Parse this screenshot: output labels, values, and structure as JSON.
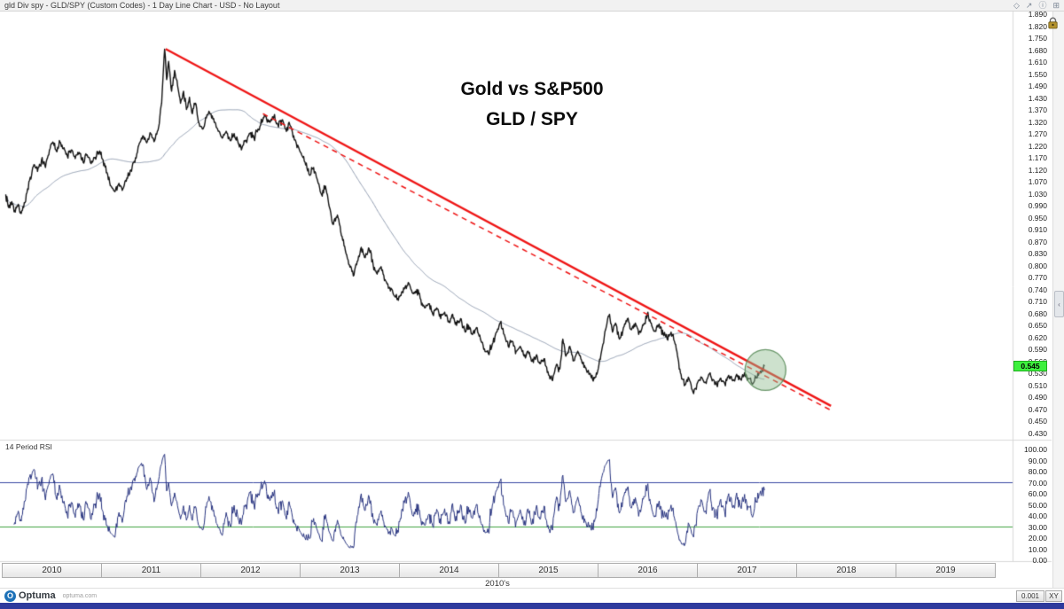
{
  "titlebar": {
    "title": "gld Div spy - GLD/SPY (Custom Codes) - 1 Day Line Chart - USD - No Layout",
    "icons": [
      {
        "name": "diamond-icon",
        "glyph": "◇"
      },
      {
        "name": "pop-out-icon",
        "glyph": "↗"
      },
      {
        "name": "info-icon",
        "glyph": "ⓘ"
      },
      {
        "name": "layout-grid-icon",
        "glyph": "⊞"
      }
    ]
  },
  "main_chart": {
    "title_line1": "Gold vs S&P500",
    "title_line2": "GLD / SPY",
    "last_price": "0.545"
  },
  "rsi_panel": {
    "label": "14 Period RSI"
  },
  "axes": {
    "price_ticks": [
      "1.890",
      "1.820",
      "1.750",
      "1.680",
      "1.610",
      "1.550",
      "1.490",
      "1.430",
      "1.370",
      "1.320",
      "1.270",
      "1.220",
      "1.170",
      "1.120",
      "1.070",
      "1.030",
      "0.990",
      "0.950",
      "0.910",
      "0.870",
      "0.830",
      "0.800",
      "0.770",
      "0.740",
      "0.710",
      "0.680",
      "0.650",
      "0.620",
      "0.590",
      "0.560",
      "0.530",
      "0.510",
      "0.490",
      "0.470",
      "0.450",
      "0.430"
    ],
    "rsi_ticks": [
      "100.00",
      "90.00",
      "80.00",
      "70.00",
      "60.00",
      "50.00",
      "40.00",
      "30.00",
      "20.00",
      "10.00",
      "0.00"
    ],
    "years": [
      "2010",
      "2011",
      "2012",
      "2013",
      "2014",
      "2015",
      "2016",
      "2017",
      "2018",
      "2019"
    ],
    "decade_label": "2010's"
  },
  "right_strip": {
    "handle_glyph": "‹"
  },
  "footer": {
    "brand": "Optuma",
    "url": "optuma.com",
    "scale_button": "0.001",
    "xy_button": "XY"
  },
  "colors": {
    "price_line": "#141414",
    "ma_line": "#8e9aae",
    "trendline": "#ee1515",
    "rsi_line": "#27337f",
    "overbought_line": "#3a49a3",
    "oversold_line": "#3fa23f",
    "badge_bg": "#3df03d",
    "circle_fill": "rgba(145,188,145,0.45)",
    "circle_stroke": "rgba(90,140,90,0.9)",
    "bottom_strip": "#2e3a9d"
  },
  "chart_data": {
    "type": "line",
    "title": "Gold vs S&P500 — GLD / SPY ratio, 1 Day Line Chart",
    "x_axis": {
      "unit": "year",
      "range": [
        2010.0,
        2020.2
      ],
      "ticks": [
        2010,
        2011,
        2012,
        2013,
        2014,
        2015,
        2016,
        2017,
        2018,
        2019
      ],
      "decade": "2010's"
    },
    "panels": [
      {
        "name": "price",
        "scale": "log",
        "value_range": [
          0.43,
          1.89
        ],
        "last_value": 0.545,
        "series": [
          {
            "name": "GLD/SPY",
            "points": [
              [
                2010.04,
                1.0
              ],
              [
                2010.07,
                0.955
              ],
              [
                2010.1,
                0.975
              ],
              [
                2010.13,
                0.945
              ],
              [
                2010.16,
                0.96
              ],
              [
                2010.19,
                0.94
              ],
              [
                2010.22,
                0.955
              ],
              [
                2010.26,
                1.02
              ],
              [
                2010.3,
                1.07
              ],
              [
                2010.33,
                1.11
              ],
              [
                2010.36,
                1.085
              ],
              [
                2010.4,
                1.13
              ],
              [
                2010.44,
                1.1
              ],
              [
                2010.48,
                1.17
              ],
              [
                2010.52,
                1.2
              ],
              [
                2010.55,
                1.165
              ],
              [
                2010.58,
                1.21
              ],
              [
                2010.62,
                1.175
              ],
              [
                2010.66,
                1.145
              ],
              [
                2010.7,
                1.17
              ],
              [
                2010.74,
                1.135
              ],
              [
                2010.78,
                1.16
              ],
              [
                2010.82,
                1.12
              ],
              [
                2010.86,
                1.15
              ],
              [
                2010.9,
                1.115
              ],
              [
                2010.94,
                1.14
              ],
              [
                2010.98,
                1.16
              ],
              [
                2011.02,
                1.13
              ],
              [
                2011.06,
                1.08
              ],
              [
                2011.1,
                1.03
              ],
              [
                2011.14,
                1.01
              ],
              [
                2011.18,
                1.04
              ],
              [
                2011.22,
                1.02
              ],
              [
                2011.26,
                1.06
              ],
              [
                2011.3,
                1.09
              ],
              [
                2011.34,
                1.12
              ],
              [
                2011.38,
                1.19
              ],
              [
                2011.42,
                1.23
              ],
              [
                2011.46,
                1.2
              ],
              [
                2011.5,
                1.24
              ],
              [
                2011.54,
                1.21
              ],
              [
                2011.58,
                1.27
              ],
              [
                2011.61,
                1.38
              ],
              [
                2011.64,
                1.67
              ],
              [
                2011.66,
                1.5
              ],
              [
                2011.68,
                1.6
              ],
              [
                2011.71,
                1.44
              ],
              [
                2011.74,
                1.55
              ],
              [
                2011.77,
                1.47
              ],
              [
                2011.8,
                1.38
              ],
              [
                2011.83,
                1.44
              ],
              [
                2011.86,
                1.35
              ],
              [
                2011.89,
                1.41
              ],
              [
                2011.92,
                1.33
              ],
              [
                2011.95,
                1.38
              ],
              [
                2011.98,
                1.29
              ],
              [
                2012.02,
                1.26
              ],
              [
                2012.06,
                1.31
              ],
              [
                2012.1,
                1.33
              ],
              [
                2012.14,
                1.29
              ],
              [
                2012.18,
                1.25
              ],
              [
                2012.22,
                1.22
              ],
              [
                2012.26,
                1.25
              ],
              [
                2012.3,
                1.21
              ],
              [
                2012.34,
                1.24
              ],
              [
                2012.38,
                1.2
              ],
              [
                2012.42,
                1.18
              ],
              [
                2012.46,
                1.21
              ],
              [
                2012.5,
                1.24
              ],
              [
                2012.54,
                1.22
              ],
              [
                2012.58,
                1.26
              ],
              [
                2012.62,
                1.29
              ],
              [
                2012.66,
                1.32
              ],
              [
                2012.7,
                1.29
              ],
              [
                2012.74,
                1.315
              ],
              [
                2012.78,
                1.28
              ],
              [
                2012.82,
                1.3
              ],
              [
                2012.86,
                1.26
              ],
              [
                2012.9,
                1.28
              ],
              [
                2012.94,
                1.23
              ],
              [
                2012.98,
                1.19
              ],
              [
                2013.02,
                1.15
              ],
              [
                2013.06,
                1.11
              ],
              [
                2013.1,
                1.07
              ],
              [
                2013.14,
                1.1
              ],
              [
                2013.18,
                1.05
              ],
              [
                2013.22,
                1.0
              ],
              [
                2013.26,
                1.03
              ],
              [
                2013.3,
                0.955
              ],
              [
                2013.34,
                0.9
              ],
              [
                2013.38,
                0.93
              ],
              [
                2013.42,
                0.865
              ],
              [
                2013.46,
                0.82
              ],
              [
                2013.5,
                0.78
              ],
              [
                2013.54,
                0.75
              ],
              [
                2013.58,
                0.79
              ],
              [
                2013.62,
                0.83
              ],
              [
                2013.66,
                0.8
              ],
              [
                2013.7,
                0.825
              ],
              [
                2013.74,
                0.78
              ],
              [
                2013.78,
                0.755
              ],
              [
                2013.82,
                0.775
              ],
              [
                2013.86,
                0.74
              ],
              [
                2013.9,
                0.72
              ],
              [
                2013.94,
                0.705
              ],
              [
                2013.98,
                0.69
              ],
              [
                2014.02,
                0.7
              ],
              [
                2014.06,
                0.72
              ],
              [
                2014.1,
                0.73
              ],
              [
                2014.14,
                0.705
              ],
              [
                2014.18,
                0.715
              ],
              [
                2014.22,
                0.69
              ],
              [
                2014.26,
                0.67
              ],
              [
                2014.3,
                0.68
              ],
              [
                2014.34,
                0.655
              ],
              [
                2014.38,
                0.67
              ],
              [
                2014.42,
                0.645
              ],
              [
                2014.46,
                0.66
              ],
              [
                2014.5,
                0.64
              ],
              [
                2014.54,
                0.655
              ],
              [
                2014.58,
                0.63
              ],
              [
                2014.62,
                0.645
              ],
              [
                2014.66,
                0.62
              ],
              [
                2014.7,
                0.63
              ],
              [
                2014.74,
                0.61
              ],
              [
                2014.78,
                0.625
              ],
              [
                2014.82,
                0.6
              ],
              [
                2014.86,
                0.58
              ],
              [
                2014.9,
                0.57
              ],
              [
                2014.94,
                0.59
              ],
              [
                2014.98,
                0.615
              ],
              [
                2015.02,
                0.635
              ],
              [
                2015.06,
                0.61
              ],
              [
                2015.1,
                0.585
              ],
              [
                2015.14,
                0.595
              ],
              [
                2015.18,
                0.575
              ],
              [
                2015.22,
                0.585
              ],
              [
                2015.26,
                0.565
              ],
              [
                2015.3,
                0.575
              ],
              [
                2015.34,
                0.555
              ],
              [
                2015.38,
                0.565
              ],
              [
                2015.42,
                0.55
              ],
              [
                2015.46,
                0.56
              ],
              [
                2015.5,
                0.535
              ],
              [
                2015.54,
                0.52
              ],
              [
                2015.58,
                0.545
              ],
              [
                2015.62,
                0.54
              ],
              [
                2015.65,
                0.6
              ],
              [
                2015.68,
                0.565
              ],
              [
                2015.72,
                0.585
              ],
              [
                2015.76,
                0.556
              ],
              [
                2015.8,
                0.575
              ],
              [
                2015.85,
                0.55
              ],
              [
                2015.9,
                0.535
              ],
              [
                2015.95,
                0.52
              ],
              [
                2016.0,
                0.535
              ],
              [
                2016.04,
                0.575
              ],
              [
                2016.08,
                0.62
              ],
              [
                2016.12,
                0.655
              ],
              [
                2016.15,
                0.615
              ],
              [
                2016.18,
                0.635
              ],
              [
                2016.22,
                0.6
              ],
              [
                2016.26,
                0.625
              ],
              [
                2016.3,
                0.645
              ],
              [
                2016.34,
                0.62
              ],
              [
                2016.38,
                0.635
              ],
              [
                2016.42,
                0.615
              ],
              [
                2016.46,
                0.63
              ],
              [
                2016.5,
                0.655
              ],
              [
                2016.54,
                0.635
              ],
              [
                2016.58,
                0.618
              ],
              [
                2016.62,
                0.633
              ],
              [
                2016.66,
                0.61
              ],
              [
                2016.7,
                0.6
              ],
              [
                2016.74,
                0.615
              ],
              [
                2016.78,
                0.59
              ],
              [
                2016.81,
                0.56
              ],
              [
                2016.84,
                0.53
              ],
              [
                2016.88,
                0.51
              ],
              [
                2016.92,
                0.522
              ],
              [
                2016.96,
                0.498
              ],
              [
                2017.0,
                0.512
              ],
              [
                2017.04,
                0.525
              ],
              [
                2017.08,
                0.515
              ],
              [
                2017.12,
                0.53
              ],
              [
                2017.16,
                0.52
              ],
              [
                2017.2,
                0.51
              ],
              [
                2017.24,
                0.523
              ],
              [
                2017.28,
                0.513
              ],
              [
                2017.32,
                0.528
              ],
              [
                2017.36,
                0.518
              ],
              [
                2017.4,
                0.53
              ],
              [
                2017.44,
                0.521
              ],
              [
                2017.48,
                0.533
              ],
              [
                2017.52,
                0.522
              ],
              [
                2017.56,
                0.512
              ],
              [
                2017.6,
                0.524
              ],
              [
                2017.64,
                0.536
              ],
              [
                2017.68,
                0.545
              ]
            ]
          },
          {
            "name": "moving-average",
            "derived": "smoothed GLD/SPY ratio",
            "window_days": 130
          }
        ],
        "annotations": {
          "trendline_solid": {
            "from": [
              2011.65,
              1.672
            ],
            "to": [
              2018.35,
              0.474
            ],
            "style": "solid"
          },
          "trendline_dashed": {
            "from": [
              2012.63,
              1.33
            ],
            "to": [
              2018.37,
              0.465
            ],
            "style": "dashed"
          },
          "highlight_circle": {
            "center": [
              2017.69,
              0.538
            ],
            "radius_px": 23
          }
        }
      },
      {
        "name": "rsi",
        "indicator": "14 Period RSI",
        "period": 14,
        "range": [
          0,
          100
        ],
        "overbought": 70,
        "oversold": 30
      }
    ]
  }
}
